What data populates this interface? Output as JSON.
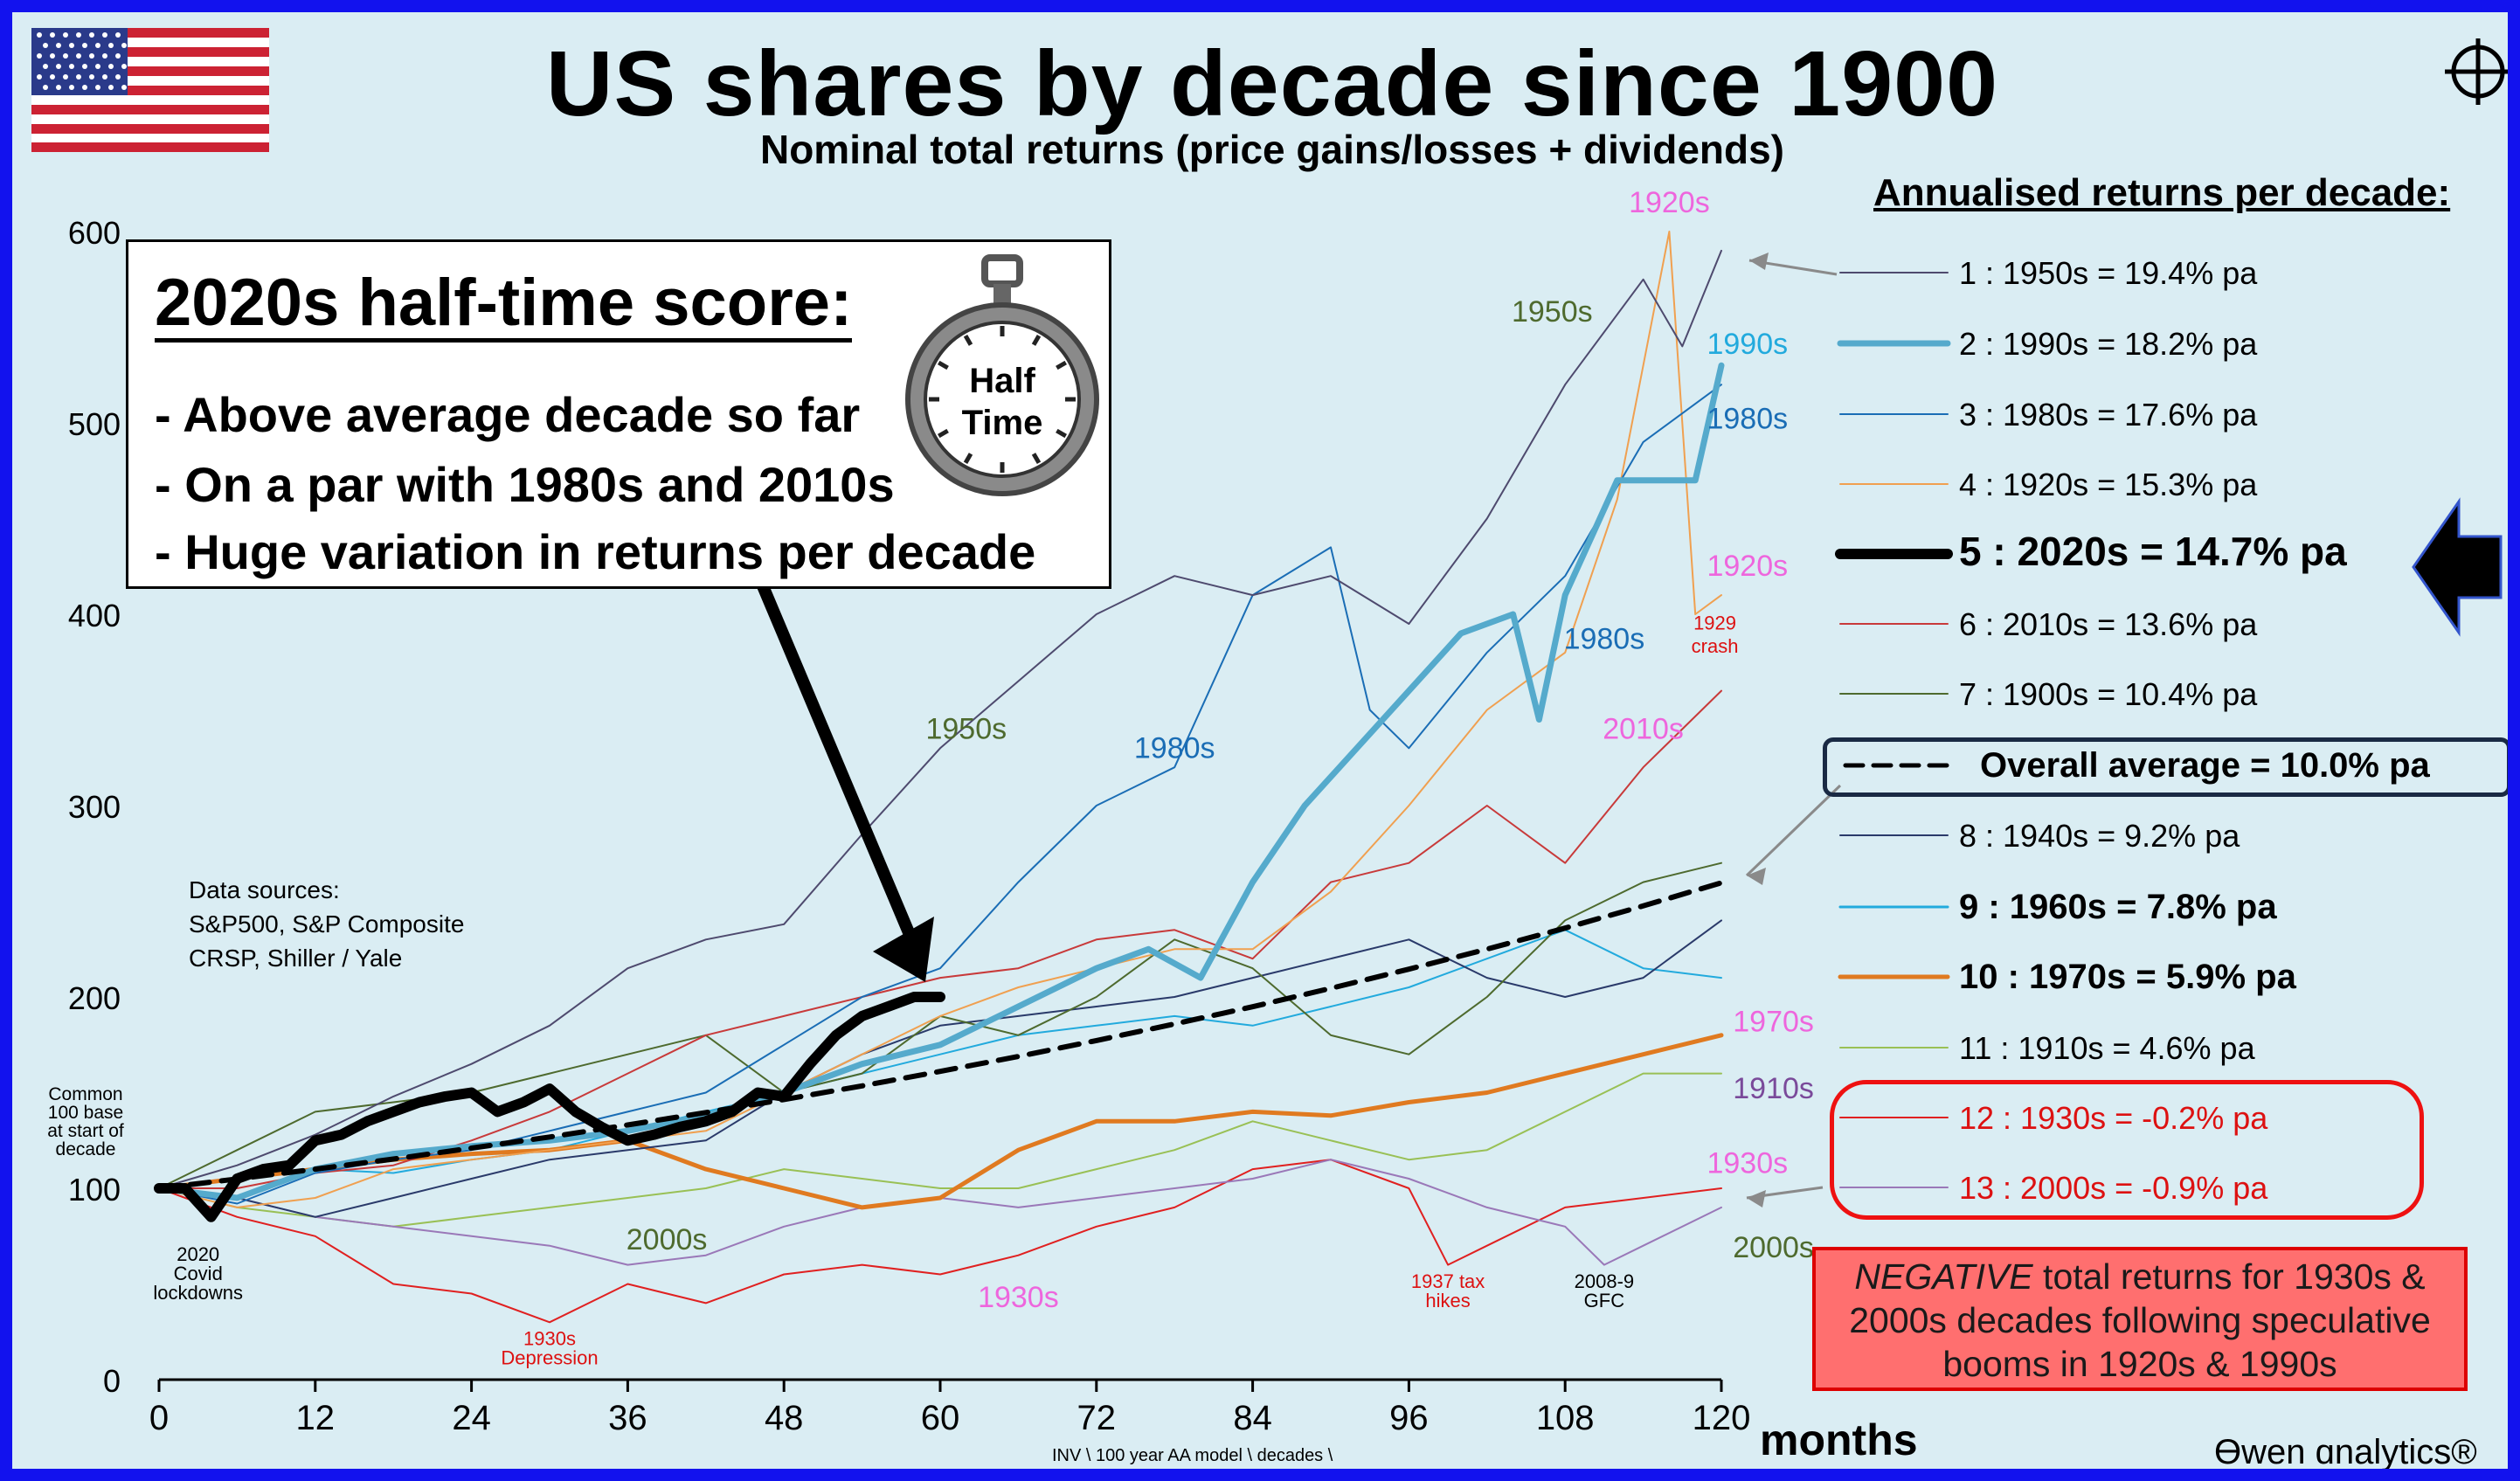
{
  "title": "US shares by decade since 1900",
  "subtitle": "Nominal total returns (price gains/losses + dividends)",
  "score_box": {
    "title": "2020s half-time score:",
    "bullets": [
      "- Above average decade so far",
      "- On a par with 1980s and 2010s",
      "- Huge variation in returns per decade"
    ],
    "stopwatch_text": [
      "Half",
      "Time"
    ]
  },
  "data_sources": [
    "Data sources:",
    "S&P500, S&P Composite",
    "CRSP, Shiller / Yale"
  ],
  "legend_title": "Annualised returns per decade:",
  "legend": [
    {
      "text": "1  :  1950s  =  19.4% pa",
      "color": "#4e4a6e",
      "bold": false,
      "lw": 2
    },
    {
      "text": "2  :  1990s  =  18.2% pa",
      "color": "#55aacc",
      "bold": false,
      "lw": 7
    },
    {
      "text": "3  :  1980s  =  17.6% pa",
      "color": "#1a6db5",
      "bold": false,
      "lw": 2
    },
    {
      "text": "4  :  1920s  =  15.3% pa",
      "color": "#f0a050",
      "bold": false,
      "lw": 2
    },
    {
      "text": "5  :  2020s  =  14.7% pa",
      "color": "#000000",
      "bold": true,
      "lw": 12
    },
    {
      "text": "6  :  2010s  =  13.6% pa",
      "color": "#c83a3a",
      "bold": false,
      "lw": 2
    },
    {
      "text": "7  :  1900s  =  10.4% pa",
      "color": "#4e6a2e",
      "bold": false,
      "lw": 2
    },
    {
      "text": "Overall average  =  10.0% pa",
      "color": "#000000",
      "bold": true,
      "lw": 5,
      "dashed": true
    },
    {
      "text": "8  :  1940s  =  9.2% pa",
      "color": "#2a3a6a",
      "bold": false,
      "lw": 2
    },
    {
      "text": "9  :  1960s  =  7.8% pa",
      "color": "#22aadd",
      "bold": true,
      "lw": 3
    },
    {
      "text": "10  :  1970s  =  5.9% pa",
      "color": "#e07a20",
      "bold": true,
      "lw": 5
    },
    {
      "text": "11  :  1910s  =  4.6% pa",
      "color": "#99c055",
      "bold": false,
      "lw": 2
    },
    {
      "text": "12  :  1930s  =  -0.2% pa",
      "color": "#e02020",
      "bold": false,
      "lw": 2,
      "red_text": true
    },
    {
      "text": "13  :  2000s  =  -0.9% pa",
      "color": "#9a78b8",
      "bold": false,
      "lw": 2,
      "red_text": true
    }
  ],
  "negative_note": {
    "emph": "NEGATIVE",
    "rest": " total returns for 1930s & 2000s decades following speculative booms in 1920s & 1990s"
  },
  "footer_path": "INV \\ 100 year AA model \\ decades \\",
  "logo": "Ɵwen ɑnalytics®",
  "months_label": "months",
  "y_axis_note": [
    "Common",
    "100 base",
    "at start of",
    "decade"
  ],
  "annotations": [
    {
      "text": "1920s",
      "x": 116,
      "y": 610,
      "color": "#ee66dd",
      "size": 34
    },
    {
      "text": "1950s",
      "x": 107,
      "y": 553,
      "color": "#4e6a2e",
      "size": 34
    },
    {
      "text": "1990s",
      "x": 122,
      "y": 536,
      "color": "#22aadd",
      "size": 34
    },
    {
      "text": "1980s",
      "x": 122,
      "y": 497,
      "color": "#1a6db5",
      "size": 34
    },
    {
      "text": "1920s",
      "x": 122,
      "y": 420,
      "color": "#ee66dd",
      "size": 34
    },
    {
      "text": "1929",
      "x": 119.5,
      "y": 392,
      "color": "#dd1111",
      "size": 22
    },
    {
      "text": "crash",
      "x": 119.5,
      "y": 380,
      "color": "#dd1111",
      "size": 22
    },
    {
      "text": "1980s",
      "x": 111,
      "y": 382,
      "color": "#1a6db5",
      "size": 34
    },
    {
      "text": "2010s",
      "x": 114,
      "y": 335,
      "color": "#ee66dd",
      "size": 34
    },
    {
      "text": "1950s",
      "x": 62,
      "y": 335,
      "color": "#4e6a2e",
      "size": 34
    },
    {
      "text": "1980s",
      "x": 78,
      "y": 325,
      "color": "#1a6db5",
      "size": 34
    },
    {
      "text": "1970s",
      "x": 124,
      "y": 182,
      "color": "#ee66dd",
      "size": 34
    },
    {
      "text": "1910s",
      "x": 124,
      "y": 147,
      "color": "#7a4a9a",
      "size": 34
    },
    {
      "text": "1930s",
      "x": 122,
      "y": 108,
      "color": "#ee66dd",
      "size": 34
    },
    {
      "text": "2000s",
      "x": 124,
      "y": 64,
      "color": "#4e6a2e",
      "size": 34
    },
    {
      "text": "2000s",
      "x": 39,
      "y": 68,
      "color": "#4e6a2e",
      "size": 34
    },
    {
      "text": "1930s",
      "x": 66,
      "y": 38,
      "color": "#ee66dd",
      "size": 34
    },
    {
      "text": "2020",
      "x": 3,
      "y": 62,
      "color": "#000000",
      "size": 22
    },
    {
      "text": "Covid",
      "x": 3,
      "y": 52,
      "color": "#000000",
      "size": 22
    },
    {
      "text": "lockdowns",
      "x": 3,
      "y": 42,
      "color": "#000000",
      "size": 22
    },
    {
      "text": "1930s",
      "x": 30,
      "y": 18,
      "color": "#dd1111",
      "size": 22
    },
    {
      "text": "Depression",
      "x": 30,
      "y": 8,
      "color": "#dd1111",
      "size": 22
    },
    {
      "text": "1937 tax",
      "x": 99,
      "y": 48,
      "color": "#dd1111",
      "size": 22
    },
    {
      "text": "hikes",
      "x": 99,
      "y": 38,
      "color": "#dd1111",
      "size": 22
    },
    {
      "text": "2008-9",
      "x": 111,
      "y": 48,
      "color": "#000000",
      "size": 22
    },
    {
      "text": "GFC",
      "x": 111,
      "y": 38,
      "color": "#000000",
      "size": 22
    }
  ],
  "chart_data": {
    "type": "line",
    "title": "US shares by decade since 1900",
    "subtitle": "Nominal total returns (price gains/losses + dividends)",
    "xlabel": "months",
    "ylabel": "",
    "xlim": [
      0,
      120
    ],
    "ylim": [
      0,
      600
    ],
    "x_ticks": [
      0,
      12,
      24,
      36,
      48,
      60,
      72,
      84,
      96,
      108,
      120
    ],
    "y_ticks": [
      0,
      100,
      200,
      300,
      400,
      500,
      600
    ],
    "grid": false,
    "legend_position": "right",
    "series": [
      {
        "name": "1950s",
        "color": "#4e4a6e",
        "lw": 2,
        "x": [
          0,
          6,
          12,
          18,
          24,
          30,
          36,
          42,
          48,
          54,
          60,
          66,
          72,
          78,
          84,
          90,
          96,
          102,
          108,
          114,
          117,
          120
        ],
        "y": [
          100,
          112,
          128,
          148,
          165,
          185,
          215,
          230,
          238,
          285,
          330,
          365,
          400,
          420,
          410,
          420,
          395,
          450,
          520,
          575,
          540,
          590
        ]
      },
      {
        "name": "1990s",
        "color": "#55aacc",
        "lw": 7,
        "x": [
          0,
          6,
          12,
          18,
          24,
          30,
          36,
          42,
          48,
          54,
          60,
          66,
          72,
          76,
          80,
          84,
          88,
          92,
          96,
          100,
          104,
          106,
          108,
          112,
          116,
          118,
          120
        ],
        "y": [
          100,
          95,
          110,
          118,
          122,
          125,
          130,
          138,
          150,
          165,
          175,
          195,
          215,
          225,
          210,
          260,
          300,
          330,
          360,
          390,
          400,
          345,
          410,
          470,
          470,
          470,
          530
        ]
      },
      {
        "name": "1980s",
        "color": "#1a6db5",
        "lw": 2,
        "x": [
          0,
          6,
          12,
          18,
          24,
          30,
          36,
          42,
          48,
          54,
          60,
          66,
          72,
          78,
          84,
          90,
          93,
          96,
          102,
          108,
          114,
          120
        ],
        "y": [
          100,
          92,
          108,
          115,
          120,
          130,
          140,
          150,
          175,
          200,
          215,
          260,
          300,
          320,
          410,
          435,
          350,
          330,
          380,
          420,
          490,
          520
        ]
      },
      {
        "name": "1920s",
        "color": "#f0a050",
        "lw": 2,
        "x": [
          0,
          6,
          12,
          18,
          24,
          30,
          36,
          42,
          48,
          54,
          60,
          66,
          72,
          78,
          84,
          90,
          96,
          102,
          108,
          112,
          116,
          118,
          120
        ],
        "y": [
          100,
          90,
          95,
          110,
          115,
          120,
          125,
          130,
          150,
          170,
          190,
          205,
          215,
          225,
          225,
          255,
          300,
          350,
          380,
          460,
          600,
          400,
          410
        ]
      },
      {
        "name": "2020s",
        "color": "#000000",
        "lw": 12,
        "x": [
          0,
          2,
          4,
          6,
          8,
          10,
          12,
          14,
          16,
          18,
          20,
          22,
          24,
          26,
          28,
          30,
          32,
          34,
          36,
          38,
          40,
          42,
          44,
          46,
          48,
          50,
          52,
          54,
          56,
          58,
          60
        ],
        "y": [
          100,
          100,
          85,
          105,
          110,
          112,
          125,
          128,
          135,
          140,
          145,
          148,
          150,
          140,
          145,
          152,
          140,
          132,
          125,
          128,
          132,
          135,
          140,
          150,
          148,
          165,
          180,
          190,
          195,
          200,
          200
        ]
      },
      {
        "name": "2010s",
        "color": "#c83a3a",
        "lw": 2,
        "x": [
          0,
          6,
          12,
          18,
          24,
          30,
          36,
          42,
          48,
          54,
          60,
          66,
          72,
          78,
          84,
          90,
          96,
          102,
          108,
          114,
          120
        ],
        "y": [
          100,
          100,
          108,
          112,
          125,
          140,
          160,
          180,
          190,
          200,
          210,
          215,
          230,
          235,
          220,
          260,
          270,
          300,
          270,
          320,
          360
        ]
      },
      {
        "name": "1900s",
        "color": "#4e6a2e",
        "lw": 2,
        "x": [
          0,
          6,
          12,
          18,
          24,
          30,
          36,
          42,
          48,
          54,
          60,
          66,
          72,
          78,
          84,
          90,
          96,
          102,
          108,
          114,
          120
        ],
        "y": [
          100,
          120,
          140,
          145,
          150,
          160,
          170,
          180,
          150,
          160,
          190,
          180,
          200,
          230,
          215,
          180,
          170,
          200,
          240,
          260,
          270
        ]
      },
      {
        "name": "Overall average",
        "color": "#000000",
        "lw": 6,
        "dashed": true,
        "x": [
          0,
          6,
          12,
          18,
          24,
          30,
          36,
          42,
          48,
          54,
          60,
          66,
          72,
          78,
          84,
          90,
          96,
          102,
          108,
          114,
          120
        ],
        "y": [
          100,
          104.9,
          110.0,
          115.3,
          121.0,
          126.8,
          133.1,
          139.6,
          146.4,
          153.5,
          161.1,
          168.9,
          177.2,
          185.9,
          194.9,
          204.5,
          214.5,
          225.0,
          236.0,
          247.6,
          259.7
        ]
      },
      {
        "name": "1940s",
        "color": "#2a3a6a",
        "lw": 2,
        "x": [
          0,
          6,
          12,
          18,
          24,
          30,
          36,
          42,
          48,
          54,
          60,
          66,
          72,
          78,
          84,
          90,
          96,
          102,
          108,
          114,
          120
        ],
        "y": [
          100,
          95,
          85,
          95,
          105,
          115,
          120,
          125,
          150,
          170,
          185,
          190,
          195,
          200,
          210,
          220,
          230,
          210,
          200,
          210,
          240
        ]
      },
      {
        "name": "1960s",
        "color": "#22aadd",
        "lw": 2,
        "x": [
          0,
          6,
          12,
          18,
          24,
          30,
          36,
          42,
          48,
          54,
          60,
          66,
          72,
          78,
          84,
          90,
          96,
          102,
          108,
          114,
          120
        ],
        "y": [
          100,
          105,
          110,
          108,
          115,
          120,
          130,
          140,
          150,
          160,
          170,
          180,
          185,
          190,
          185,
          195,
          205,
          220,
          235,
          215,
          210
        ]
      },
      {
        "name": "1970s",
        "color": "#e07a20",
        "lw": 5,
        "x": [
          0,
          6,
          12,
          18,
          24,
          30,
          36,
          42,
          48,
          54,
          60,
          66,
          72,
          78,
          84,
          90,
          96,
          102,
          108,
          114,
          120
        ],
        "y": [
          100,
          105,
          110,
          115,
          118,
          120,
          125,
          110,
          100,
          90,
          95,
          120,
          135,
          135,
          140,
          138,
          145,
          150,
          160,
          170,
          180
        ]
      },
      {
        "name": "1910s",
        "color": "#99c055",
        "lw": 2,
        "x": [
          0,
          6,
          12,
          18,
          24,
          30,
          36,
          42,
          48,
          54,
          60,
          66,
          72,
          78,
          84,
          90,
          96,
          102,
          108,
          114,
          120
        ],
        "y": [
          100,
          90,
          85,
          80,
          85,
          90,
          95,
          100,
          110,
          105,
          100,
          100,
          110,
          120,
          135,
          125,
          115,
          120,
          140,
          160,
          160
        ]
      },
      {
        "name": "1930s",
        "color": "#e02020",
        "lw": 2,
        "x": [
          0,
          6,
          12,
          18,
          24,
          30,
          36,
          42,
          48,
          54,
          60,
          66,
          72,
          78,
          84,
          90,
          96,
          99,
          102,
          108,
          114,
          120
        ],
        "y": [
          100,
          85,
          75,
          50,
          45,
          30,
          50,
          40,
          55,
          60,
          55,
          65,
          80,
          90,
          110,
          115,
          100,
          60,
          70,
          90,
          95,
          100
        ]
      },
      {
        "name": "2000s",
        "color": "#9a78b8",
        "lw": 2,
        "x": [
          0,
          6,
          12,
          18,
          24,
          30,
          36,
          42,
          48,
          54,
          60,
          66,
          72,
          78,
          84,
          90,
          96,
          102,
          108,
          111,
          114,
          120
        ],
        "y": [
          100,
          95,
          85,
          80,
          75,
          70,
          60,
          65,
          80,
          90,
          95,
          90,
          95,
          100,
          105,
          115,
          105,
          90,
          80,
          60,
          70,
          90
        ]
      }
    ]
  }
}
